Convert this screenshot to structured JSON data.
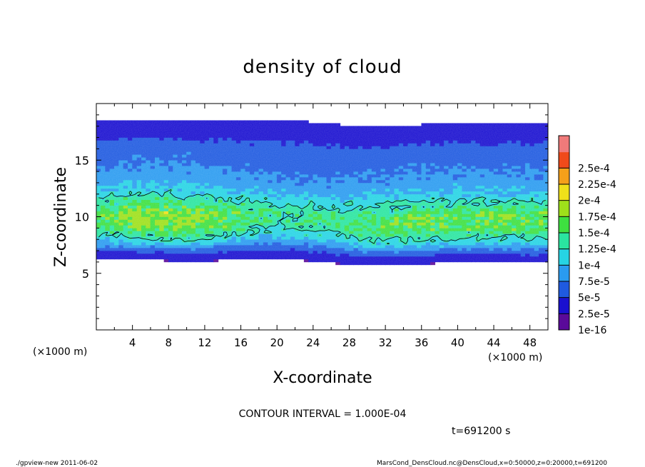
{
  "chart_data": {
    "type": "heatmap",
    "title": "density of cloud",
    "xlabel": "X-coordinate",
    "ylabel": "Z-coordinate",
    "x_unit": "(×1000 m)",
    "y_unit": "(×1000 m)",
    "xlim": [
      0,
      50
    ],
    "ylim": [
      0,
      20
    ],
    "x_ticks": [
      "4",
      "8",
      "12",
      "16",
      "20",
      "24",
      "28",
      "32",
      "36",
      "40",
      "44",
      "48"
    ],
    "y_ticks": [
      "5",
      "10",
      "15"
    ],
    "colorbar_labels": [
      "1e-16",
      "2.5e-5",
      "5e-5",
      "7.5e-5",
      "1e-4",
      "1.25e-4",
      "1.5e-4",
      "1.75e-4",
      "2e-4",
      "2.25e-4",
      "2.5e-4"
    ],
    "colorbar_colors": [
      "#5a0a9a",
      "#1a10d0",
      "#1f5ae0",
      "#2a9bf0",
      "#26d4e4",
      "#2ae5a0",
      "#3ee040",
      "#9ee01a",
      "#f0e01a",
      "#f5a01a",
      "#f04a1a",
      "#f07a7a"
    ],
    "contour_interval": "CONTOUR INTERVAL = 1.000E-04",
    "contour_level": 0.0001,
    "time_label": "t=691200 s",
    "profile_z": [
      6.0,
      6.5,
      7.0,
      7.5,
      8.0,
      9.0,
      10.0,
      11.0,
      12.0,
      13.0,
      14.0,
      15.0,
      16.0,
      16.8,
      17.5,
      18.3
    ],
    "profile_density": [
      1e-08,
      1.2e-05,
      3.5e-05,
      6.5e-05,
      9e-05,
      0.000125,
      0.000135,
      0.00011,
      8e-05,
      6e-05,
      5e-05,
      4e-05,
      3.5e-05,
      2e-05,
      8e-06,
      2e-06
    ]
  },
  "footer": {
    "left": "./gpview-new   2011-06-02",
    "right": "MarsCond_DensCloud.nc@DensCloud,x=0:50000,z=0:20000,t=691200"
  }
}
